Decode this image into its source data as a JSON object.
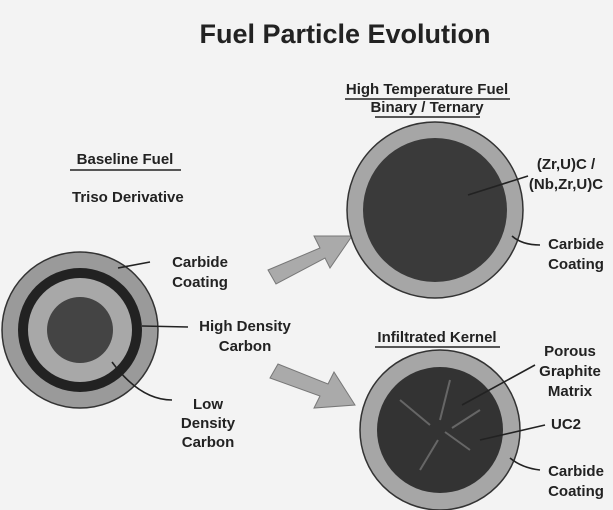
{
  "title": "Fuel Particle Evolution",
  "baseline": {
    "heading": "Baseline Fuel",
    "subheading": "Triso Derivative",
    "carbide_coating": [
      "Carbide",
      "Coating"
    ],
    "high_density_carbon": [
      "High Density",
      "Carbon"
    ],
    "low_density_carbon": [
      "Low",
      "Density",
      "Carbon"
    ]
  },
  "high_temperature": {
    "heading": [
      "High Temperature Fuel",
      "Binary / Ternary"
    ],
    "kernel": [
      "(Zr,U)C /",
      "(Nb,Zr,U)C"
    ],
    "carbide_coating": [
      "Carbide",
      "Coating"
    ]
  },
  "infiltrated": {
    "heading": "Infiltrated Kernel",
    "matrix": [
      "Porous",
      "Graphite",
      "Matrix"
    ],
    "uc2": "UC2",
    "carbide_coating": [
      "Carbide",
      "Coating"
    ]
  }
}
